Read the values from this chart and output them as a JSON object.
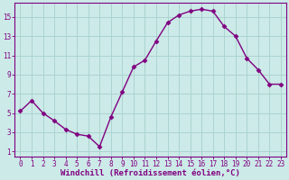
{
  "x": [
    0,
    1,
    2,
    3,
    4,
    5,
    6,
    7,
    8,
    9,
    10,
    11,
    12,
    13,
    14,
    15,
    16,
    17,
    18,
    19,
    20,
    21,
    22,
    23
  ],
  "y": [
    5.2,
    6.3,
    5.0,
    4.2,
    3.3,
    2.8,
    2.6,
    1.5,
    4.6,
    7.2,
    9.8,
    10.5,
    12.5,
    14.4,
    15.2,
    15.6,
    15.8,
    15.6,
    14.0,
    13.0,
    10.7,
    9.5,
    8.0,
    8.0
  ],
  "line_color": "#800080",
  "marker": "D",
  "marker_size": 2.5,
  "line_width": 1.0,
  "bg_color": "#cceae8",
  "grid_color": "#aad4d0",
  "yticks": [
    1,
    3,
    5,
    7,
    9,
    11,
    13,
    15
  ],
  "xlabel_label": "Windchill (Refroidissement éolien,°C)",
  "xlabel_fontsize": 6.5,
  "tick_fontsize": 5.5,
  "xlim": [
    -0.5,
    23.5
  ],
  "ylim": [
    0.5,
    16.5
  ]
}
